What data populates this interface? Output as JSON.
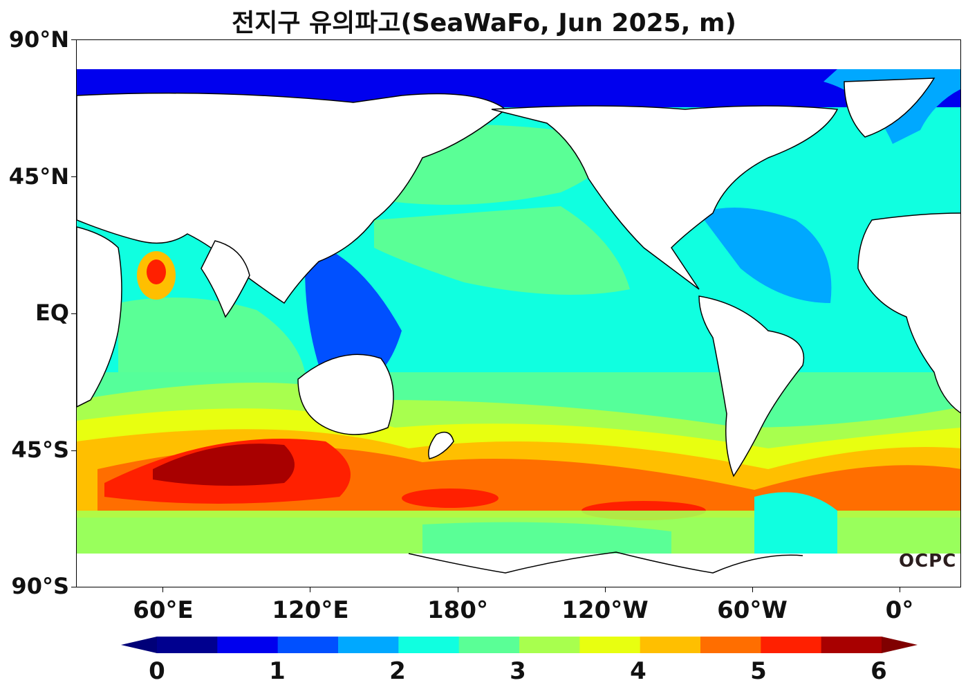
{
  "title": "전지구 유의파고(SeaWaFo, Jun 2025, m)",
  "watermark": "OCPC",
  "y_labels": [
    "90°N",
    "45°N",
    "EQ",
    "45°S",
    "90°S"
  ],
  "x_labels": [
    "60°E",
    "120°E",
    "180°",
    "120°W",
    "60°W",
    "0°"
  ],
  "colorbar": {
    "labels": [
      "0",
      "1",
      "2",
      "3",
      "4",
      "5",
      "6"
    ],
    "colors": [
      "#00008f",
      "#0000ee",
      "#0050ff",
      "#00a8ff",
      "#10ffe0",
      "#5aff96",
      "#a8ff4e",
      "#e8ff10",
      "#ffbf00",
      "#ff6e00",
      "#ff2000",
      "#a80000"
    ],
    "under_color": "#000078",
    "over_color": "#800000"
  },
  "colors": {
    "land": "#ffffff",
    "coast": "#000000"
  }
}
